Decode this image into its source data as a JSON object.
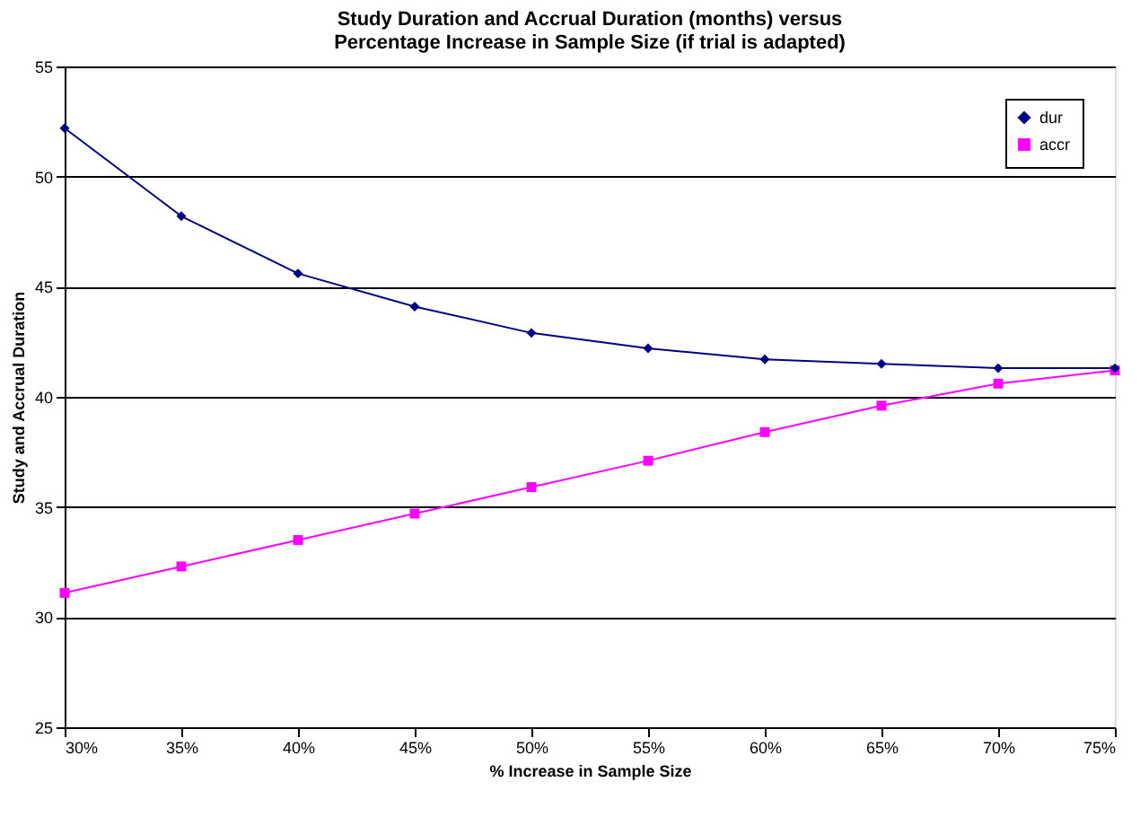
{
  "chart_data": {
    "type": "line",
    "title": [
      "Study Duration and Accrual Duration (months) versus",
      "Percentage Increase in Sample Size (if trial is adapted)"
    ],
    "xlabel": "% Increase in Sample Size",
    "ylabel": "Study and Accrual Duration",
    "x": [
      30,
      35,
      40,
      45,
      50,
      55,
      60,
      65,
      70,
      75
    ],
    "series": [
      {
        "name": "dur",
        "color": "#000080",
        "marker": "diamond",
        "values": [
          52.2,
          48.2,
          45.6,
          44.1,
          42.9,
          42.2,
          41.7,
          41.5,
          41.3,
          41.3
        ]
      },
      {
        "name": "accr",
        "color": "#ff00ff",
        "marker": "square",
        "values": [
          31.1,
          32.3,
          33.5,
          34.7,
          35.9,
          37.1,
          38.4,
          39.6,
          40.6,
          41.2
        ]
      }
    ],
    "xlim": [
      30,
      75
    ],
    "xticks": [
      {
        "value": 30,
        "label": "30%"
      },
      {
        "value": 35,
        "label": "35%"
      },
      {
        "value": 40,
        "label": "40%"
      },
      {
        "value": 45,
        "label": "45%"
      },
      {
        "value": 50,
        "label": "50%"
      },
      {
        "value": 55,
        "label": "55%"
      },
      {
        "value": 60,
        "label": "60%"
      },
      {
        "value": 65,
        "label": "65%"
      },
      {
        "value": 70,
        "label": "70%"
      },
      {
        "value": 75,
        "label": "75%"
      }
    ],
    "ylim": [
      25,
      55
    ],
    "yticks": [
      25,
      30,
      35,
      40,
      45,
      50,
      55
    ],
    "grid": "y",
    "legend": "top right",
    "line_style": "solid"
  }
}
